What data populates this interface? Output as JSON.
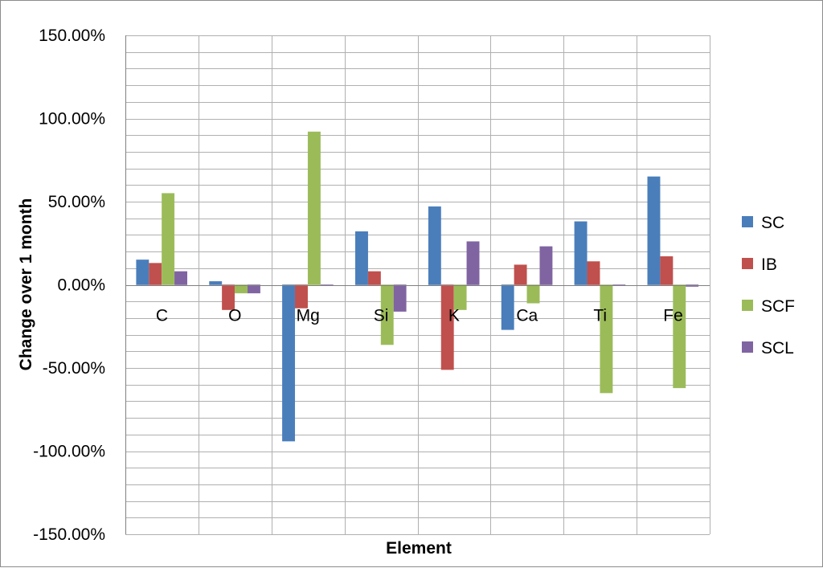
{
  "chart_data": {
    "type": "bar",
    "xlabel": "Element",
    "ylabel": "Change over 1 month",
    "ylim": [
      -1.5,
      1.5
    ],
    "major_tick_step": 0.5,
    "minor_tick_step": 0.1,
    "tick_format": "percent_2dp",
    "y_ticks": [
      "150.00%",
      "100.00%",
      "50.00%",
      "0.00%",
      "-50.00%",
      "-100.00%",
      "-150.00%"
    ],
    "grid": true,
    "legend_position": "right",
    "categories": [
      "C",
      "O",
      "Mg",
      "Si",
      "K",
      "Ca",
      "Ti",
      "Fe"
    ],
    "series": [
      {
        "name": "SC",
        "color": "#4a7ebb",
        "values": [
          0.15,
          0.02,
          -0.94,
          0.32,
          0.47,
          -0.27,
          0.38,
          0.65
        ]
      },
      {
        "name": "IB",
        "color": "#c0504d",
        "values": [
          0.13,
          -0.15,
          -0.14,
          0.08,
          -0.51,
          0.12,
          0.14,
          0.17
        ]
      },
      {
        "name": "SCF",
        "color": "#9bbb59",
        "values": [
          0.55,
          -0.05,
          0.92,
          -0.36,
          -0.15,
          -0.11,
          -0.65,
          -0.62
        ]
      },
      {
        "name": "SCL",
        "color": "#8064a2",
        "values": [
          0.08,
          -0.05,
          0.0,
          -0.16,
          0.26,
          0.23,
          0.0,
          -0.01
        ]
      }
    ]
  }
}
